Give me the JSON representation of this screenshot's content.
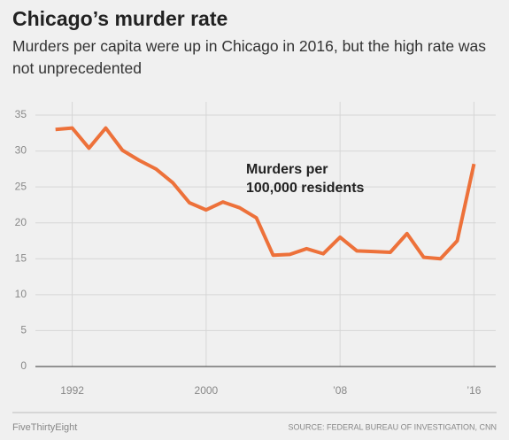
{
  "chart_data": {
    "type": "line",
    "title": "Chicago’s murder rate",
    "subtitle": "Murders per capita were up in Chicago in 2016, but the high rate was not unprecedented",
    "annotation": [
      "Murders per",
      "100,000 residents"
    ],
    "credit": "FiveThirtyEight",
    "source": "SOURCE: FEDERAL BUREAU OF INVESTIGATION, CNN",
    "x": [
      1991,
      1992,
      1993,
      1994,
      1995,
      1996,
      1997,
      1998,
      1999,
      2000,
      2001,
      2002,
      2003,
      2004,
      2005,
      2006,
      2007,
      2008,
      2009,
      2010,
      2011,
      2012,
      2013,
      2014,
      2015,
      2016
    ],
    "series": [
      {
        "name": "Murders per 100,000 residents",
        "color": "#ed713a",
        "values": [
          33.0,
          33.2,
          30.4,
          33.2,
          30.1,
          28.7,
          27.5,
          25.6,
          22.8,
          21.8,
          22.9,
          22.1,
          20.7,
          15.5,
          15.6,
          16.4,
          15.7,
          18.0,
          16.1,
          16.0,
          15.9,
          18.5,
          15.2,
          15.0,
          17.5,
          28.2
        ]
      }
    ],
    "xlim": [
      1989.8,
      2017.3
    ],
    "xticks": [
      1992,
      2000,
      {
        "value": 2008,
        "label": "’08"
      },
      {
        "value": 2016,
        "label": "’16"
      }
    ],
    "ylim": [
      0,
      35
    ],
    "yticks": [
      0,
      5,
      10,
      15,
      20,
      25,
      30,
      35
    ],
    "grid": true
  }
}
